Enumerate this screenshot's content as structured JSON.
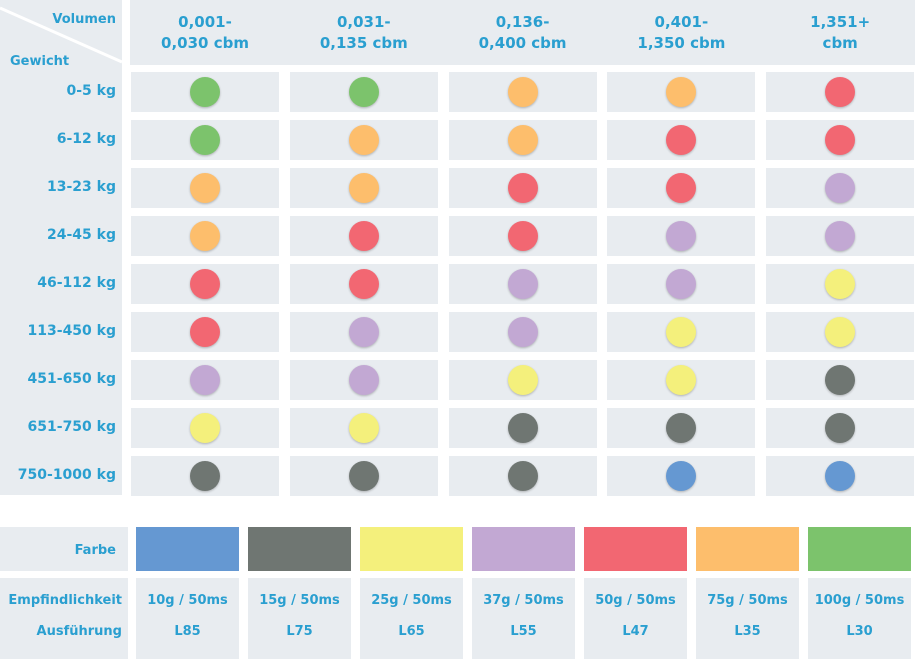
{
  "header": {
    "volume_label": "Volumen",
    "weight_label": "Gewicht",
    "columns": [
      "0,001-\n0,030 cbm",
      "0,031-\n0,135 cbm",
      "0,136-\n0,400 cbm",
      "0,401-\n1,350 cbm",
      "1,351+\ncbm"
    ]
  },
  "rows": [
    {
      "label": "0-5 kg",
      "colors": [
        "#7cc36c",
        "#7cc36c",
        "#fdbe6c",
        "#fdbe6c",
        "#f26772"
      ]
    },
    {
      "label": "6-12 kg",
      "colors": [
        "#7cc36c",
        "#fdbe6c",
        "#fdbe6c",
        "#f26772",
        "#f26772"
      ]
    },
    {
      "label": "13-23 kg",
      "colors": [
        "#fdbe6c",
        "#fdbe6c",
        "#f26772",
        "#f26772",
        "#c2a8d3"
      ]
    },
    {
      "label": "24-45 kg",
      "colors": [
        "#fdbe6c",
        "#f26772",
        "#f26772",
        "#c2a8d3",
        "#c2a8d3"
      ]
    },
    {
      "label": "46-112 kg",
      "colors": [
        "#f26772",
        "#f26772",
        "#c2a8d3",
        "#c2a8d3",
        "#f4f07c"
      ]
    },
    {
      "label": "113-450 kg",
      "colors": [
        "#f26772",
        "#c2a8d3",
        "#c2a8d3",
        "#f4f07c",
        "#f4f07c"
      ]
    },
    {
      "label": "451-650 kg",
      "colors": [
        "#c2a8d3",
        "#c2a8d3",
        "#f4f07c",
        "#f4f07c",
        "#6f7672"
      ]
    },
    {
      "label": "651-750 kg",
      "colors": [
        "#f4f07c",
        "#f4f07c",
        "#6f7672",
        "#6f7672",
        "#6f7672"
      ]
    },
    {
      "label": "750-1000 kg",
      "colors": [
        "#6f7672",
        "#6f7672",
        "#6f7672",
        "#6598d2",
        "#6598d2"
      ]
    }
  ],
  "legend": {
    "color_label": "Farbe",
    "sensitivity_label": "Empfindlichkeit",
    "execution_label": "Ausführung",
    "items": [
      {
        "color": "#6598d2",
        "sensitivity": "10g / 50ms",
        "execution": "L85"
      },
      {
        "color": "#6f7672",
        "sensitivity": "15g / 50ms",
        "execution": "L75"
      },
      {
        "color": "#f4f07c",
        "sensitivity": "25g / 50ms",
        "execution": "L65"
      },
      {
        "color": "#c2a8d3",
        "sensitivity": "37g / 50ms",
        "execution": "L55"
      },
      {
        "color": "#f26772",
        "sensitivity": "50g / 50ms",
        "execution": "L47"
      },
      {
        "color": "#fdbe6c",
        "sensitivity": "75g / 50ms",
        "execution": "L35"
      },
      {
        "color": "#7cc36c",
        "sensitivity": "100g / 50ms",
        "execution": "L30"
      }
    ]
  }
}
